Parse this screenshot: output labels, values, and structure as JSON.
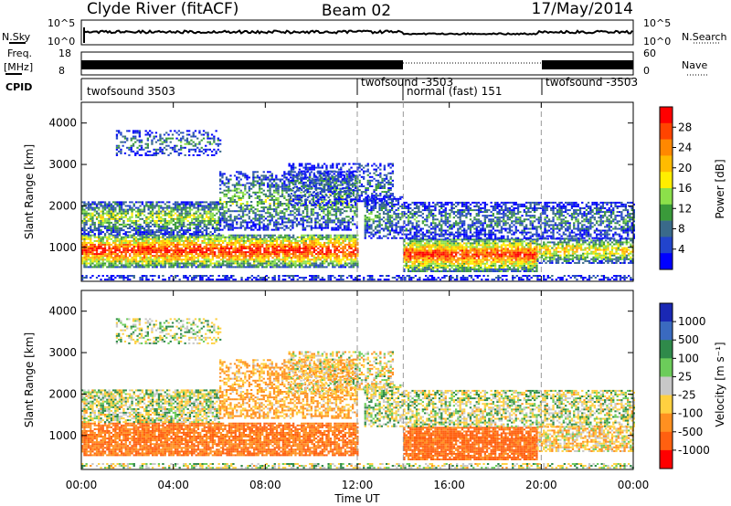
{
  "header": {
    "title_left": "Clyde River (fitACF)",
    "title_center": "Beam 02",
    "title_right": "17/May/2014"
  },
  "strip_panels": {
    "nsky_label": "N.Sky",
    "nsky_ticks": [
      "10^5",
      "10^0"
    ],
    "nsearch_label": "N.Search",
    "nsearch_ticks": [
      "10^5",
      "10^0"
    ],
    "freq_label": "Freq.",
    "freq_unit": "[MHz]",
    "freq_ticks": [
      "18",
      "8"
    ],
    "nave_label": "Nave",
    "nave_ticks": [
      "60",
      "0"
    ],
    "cpid_label": "CPID",
    "cpid_segments": [
      {
        "label": "twofsound 3503",
        "start_h": 0,
        "end_h": 12
      },
      {
        "label": "twofsound -3503",
        "start_h": 12,
        "end_h": 14
      },
      {
        "label": "normal (fast) 151",
        "start_h": 14,
        "end_h": 20
      },
      {
        "label": "twofsound -3503",
        "start_h": 20,
        "end_h": 24
      }
    ]
  },
  "colorbars": {
    "power": {
      "title": "Power [dB]",
      "ticks": [
        "28",
        "24",
        "20",
        "16",
        "12",
        "8",
        "4"
      ],
      "colors": [
        "#ff0000",
        "#ff4400",
        "#ff8800",
        "#ffbb00",
        "#ffee00",
        "#8ce04a",
        "#3a9a3a",
        "#3a6a8a",
        "#2244cc",
        "#0000ff"
      ]
    },
    "velocity": {
      "title": "Velocity [m s⁻¹]",
      "ticks": [
        "1000",
        "500",
        "100",
        "25",
        "-25",
        "-100",
        "-500",
        "-1000"
      ],
      "colors": [
        "#1a28b4",
        "#3a6ac0",
        "#2f8a4a",
        "#6ccc5a",
        "#c8c8c8",
        "#ffd040",
        "#ff9020",
        "#ff6010",
        "#ff0000"
      ]
    }
  },
  "axes": {
    "xlabel": "Time UT",
    "ylabel": "Slant Range [km]"
  },
  "chart_data": [
    {
      "type": "heatmap",
      "quantity": "Power",
      "unit": "dB",
      "xlim_hours": [
        0,
        24
      ],
      "ylim_km": [
        180,
        4500
      ],
      "xticks": [
        "00:00",
        "04:00",
        "08:00",
        "12:00",
        "16:00",
        "20:00",
        "00:00"
      ],
      "yticks": [
        1000,
        2000,
        3000,
        4000
      ],
      "colorbar_range": [
        0,
        30
      ],
      "dashed_vlines_h": [
        12,
        14,
        20
      ]
    },
    {
      "type": "heatmap",
      "quantity": "Velocity",
      "unit": "m s^-1",
      "xlim_hours": [
        0,
        24
      ],
      "ylim_km": [
        180,
        4500
      ],
      "xticks": [
        "00:00",
        "04:00",
        "08:00",
        "12:00",
        "16:00",
        "20:00",
        "00:00"
      ],
      "yticks": [
        1000,
        2000,
        3000,
        4000
      ],
      "colorbar_range": [
        -1000,
        1000
      ],
      "dashed_vlines_h": [
        12,
        14,
        20
      ]
    }
  ]
}
